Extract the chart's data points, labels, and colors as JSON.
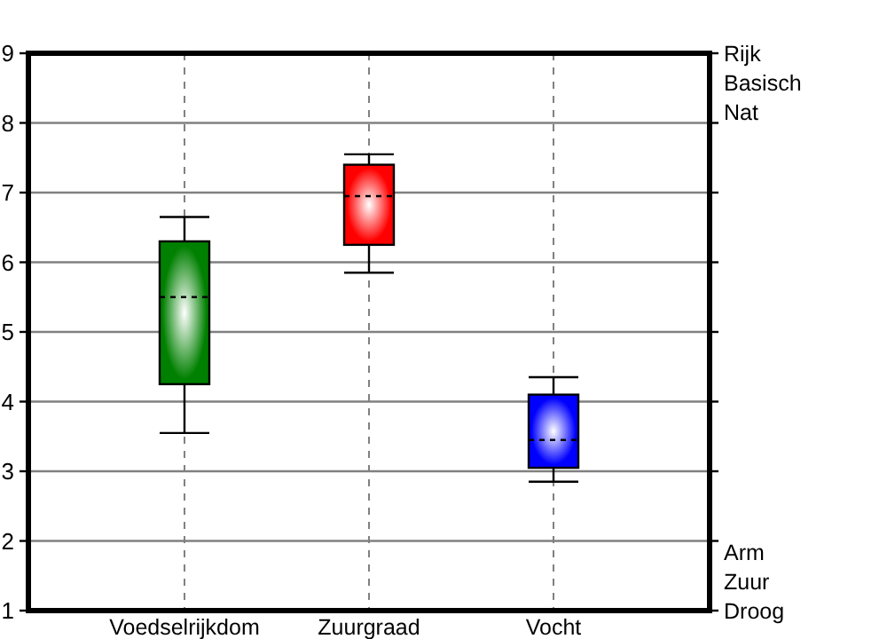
{
  "chart_data": {
    "type": "box",
    "categories": [
      "Voedselrijkdom",
      "Zuurgraad",
      "Vocht"
    ],
    "boxes": [
      {
        "low": 3.55,
        "q1": 4.25,
        "median": 5.5,
        "q3": 6.3,
        "high": 6.65
      },
      {
        "low": 5.85,
        "q1": 6.25,
        "median": 6.95,
        "q3": 7.4,
        "high": 7.55
      },
      {
        "low": 2.85,
        "q1": 3.05,
        "median": 3.45,
        "q3": 4.1,
        "high": 4.35
      }
    ],
    "colors": [
      "#008000",
      "#ff0000",
      "#0000ff"
    ],
    "ylim": [
      1,
      9
    ],
    "yticks": [
      1,
      2,
      3,
      4,
      5,
      6,
      7,
      8,
      9
    ],
    "grid": true,
    "annotations": [
      "Rijk",
      "Basisch",
      "Nat",
      "Arm",
      "Zuur",
      "Droog"
    ]
  }
}
